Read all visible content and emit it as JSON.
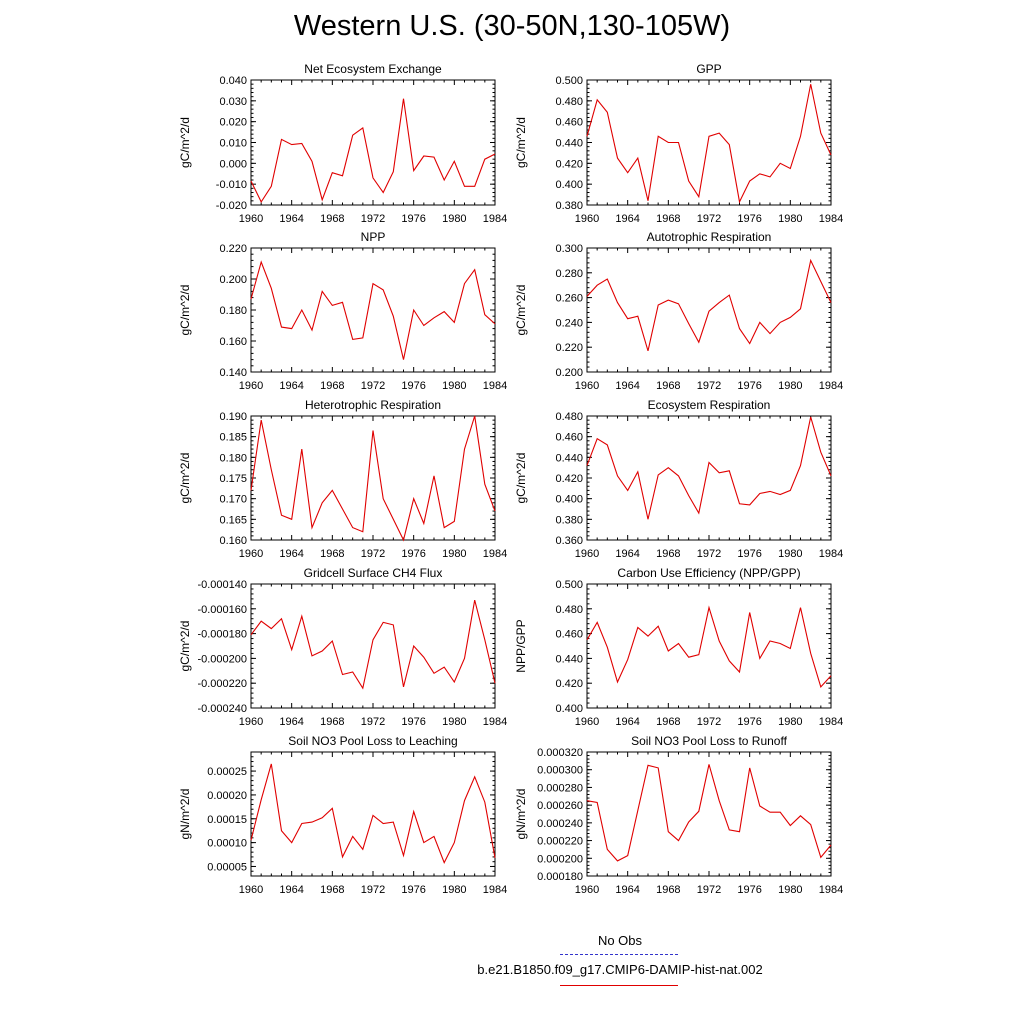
{
  "title": "Western U.S. (30-50N,130-105W)",
  "colors": {
    "model_line": "#e00000",
    "obs_line": "#3333cc",
    "axis": "#000000"
  },
  "legend": {
    "obs_label": "No Obs",
    "model_label": "b.e21.B1850.f09_g17.CMIP6-DAMIP-hist-nat.002"
  },
  "chart_data": [
    {
      "type": "line",
      "title": "Net Ecosystem Exchange",
      "ylabel": "gC/m^2/d",
      "xlim": [
        1960,
        1984
      ],
      "ylim": [
        -0.02,
        0.04
      ],
      "yticks": [
        "-0.020",
        "-0.010",
        "0.000",
        "0.010",
        "0.020",
        "0.030",
        "0.040"
      ],
      "xticks": [
        "1960",
        "1964",
        "1968",
        "1972",
        "1976",
        "1980",
        "1984"
      ],
      "x": [
        1960,
        1961,
        1962,
        1963,
        1964,
        1965,
        1966,
        1967,
        1968,
        1969,
        1970,
        1971,
        1972,
        1973,
        1974,
        1975,
        1976,
        1977,
        1978,
        1979,
        1980,
        1981,
        1982,
        1983,
        1984
      ],
      "series": [
        {
          "values": [
            -0.0085,
            -0.0185,
            -0.011,
            0.0115,
            0.009,
            0.0095,
            0.001,
            -0.0175,
            -0.0045,
            -0.006,
            0.0135,
            0.017,
            -0.007,
            -0.014,
            -0.004,
            0.031,
            -0.0035,
            0.0035,
            0.003,
            -0.008,
            0.001,
            -0.011,
            -0.011,
            0.002,
            0.0045
          ]
        }
      ]
    },
    {
      "type": "line",
      "title": "GPP",
      "ylabel": "gC/m^2/d",
      "xlim": [
        1960,
        1984
      ],
      "ylim": [
        0.38,
        0.5
      ],
      "yticks": [
        "0.380",
        "0.400",
        "0.420",
        "0.440",
        "0.460",
        "0.480",
        "0.500"
      ],
      "xticks": [
        "1960",
        "1964",
        "1968",
        "1972",
        "1976",
        "1980",
        "1984"
      ],
      "x": [
        1960,
        1961,
        1962,
        1963,
        1964,
        1965,
        1966,
        1967,
        1968,
        1969,
        1970,
        1971,
        1972,
        1973,
        1974,
        1975,
        1976,
        1977,
        1978,
        1979,
        1980,
        1981,
        1982,
        1983,
        1984
      ],
      "series": [
        {
          "values": [
            0.446,
            0.481,
            0.469,
            0.425,
            0.411,
            0.425,
            0.384,
            0.446,
            0.44,
            0.44,
            0.403,
            0.388,
            0.446,
            0.449,
            0.438,
            0.383,
            0.403,
            0.41,
            0.407,
            0.42,
            0.415,
            0.446,
            0.496,
            0.449,
            0.428
          ]
        }
      ]
    },
    {
      "type": "line",
      "title": "NPP",
      "ylabel": "gC/m^2/d",
      "xlim": [
        1960,
        1984
      ],
      "ylim": [
        0.14,
        0.22
      ],
      "yticks": [
        "0.140",
        "0.160",
        "0.180",
        "0.200",
        "0.220"
      ],
      "xticks": [
        "1960",
        "1964",
        "1968",
        "1972",
        "1976",
        "1980",
        "1984"
      ],
      "x": [
        1960,
        1961,
        1962,
        1963,
        1964,
        1965,
        1966,
        1967,
        1968,
        1969,
        1970,
        1971,
        1972,
        1973,
        1974,
        1975,
        1976,
        1977,
        1978,
        1979,
        1980,
        1981,
        1982,
        1983,
        1984
      ],
      "series": [
        {
          "values": [
            0.187,
            0.211,
            0.194,
            0.169,
            0.168,
            0.18,
            0.167,
            0.192,
            0.183,
            0.185,
            0.161,
            0.162,
            0.197,
            0.193,
            0.176,
            0.148,
            0.18,
            0.17,
            0.175,
            0.179,
            0.172,
            0.197,
            0.206,
            0.177,
            0.171
          ]
        }
      ]
    },
    {
      "type": "line",
      "title": "Autotrophic Respiration",
      "ylabel": "gC/m^2/d",
      "xlim": [
        1960,
        1984
      ],
      "ylim": [
        0.2,
        0.3
      ],
      "yticks": [
        "0.200",
        "0.220",
        "0.240",
        "0.260",
        "0.280",
        "0.300"
      ],
      "xticks": [
        "1960",
        "1964",
        "1968",
        "1972",
        "1976",
        "1980",
        "1984"
      ],
      "x": [
        1960,
        1961,
        1962,
        1963,
        1964,
        1965,
        1966,
        1967,
        1968,
        1969,
        1970,
        1971,
        1972,
        1973,
        1974,
        1975,
        1976,
        1977,
        1978,
        1979,
        1980,
        1981,
        1982,
        1983,
        1984
      ],
      "series": [
        {
          "values": [
            0.261,
            0.27,
            0.275,
            0.256,
            0.243,
            0.245,
            0.217,
            0.254,
            0.258,
            0.255,
            0.239,
            0.224,
            0.249,
            0.256,
            0.262,
            0.235,
            0.223,
            0.24,
            0.231,
            0.24,
            0.244,
            0.251,
            0.29,
            0.273,
            0.256
          ]
        }
      ]
    },
    {
      "type": "line",
      "title": "Heterotrophic Respiration",
      "ylabel": "gC/m^2/d",
      "xlim": [
        1960,
        1984
      ],
      "ylim": [
        0.16,
        0.19
      ],
      "yticks": [
        "0.160",
        "0.165",
        "0.170",
        "0.175",
        "0.180",
        "0.185",
        "0.190"
      ],
      "xticks": [
        "1960",
        "1964",
        "1968",
        "1972",
        "1976",
        "1980",
        "1984"
      ],
      "x": [
        1960,
        1961,
        1962,
        1963,
        1964,
        1965,
        1966,
        1967,
        1968,
        1969,
        1970,
        1971,
        1972,
        1973,
        1974,
        1975,
        1976,
        1977,
        1978,
        1979,
        1980,
        1981,
        1982,
        1983,
        1984
      ],
      "series": [
        {
          "values": [
            0.172,
            0.189,
            0.177,
            0.166,
            0.165,
            0.182,
            0.163,
            0.169,
            0.172,
            0.1675,
            0.163,
            0.162,
            0.1865,
            0.17,
            0.165,
            0.16,
            0.17,
            0.164,
            0.1755,
            0.163,
            0.1645,
            0.182,
            0.19,
            0.1735,
            0.167
          ]
        }
      ]
    },
    {
      "type": "line",
      "title": "Ecosystem Respiration",
      "ylabel": "gC/m^2/d",
      "xlim": [
        1960,
        1984
      ],
      "ylim": [
        0.36,
        0.48
      ],
      "yticks": [
        "0.360",
        "0.380",
        "0.400",
        "0.420",
        "0.440",
        "0.460",
        "0.480"
      ],
      "xticks": [
        "1960",
        "1964",
        "1968",
        "1972",
        "1976",
        "1980",
        "1984"
      ],
      "x": [
        1960,
        1961,
        1962,
        1963,
        1964,
        1965,
        1966,
        1967,
        1968,
        1969,
        1970,
        1971,
        1972,
        1973,
        1974,
        1975,
        1976,
        1977,
        1978,
        1979,
        1980,
        1981,
        1982,
        1983,
        1984
      ],
      "series": [
        {
          "values": [
            0.432,
            0.458,
            0.452,
            0.422,
            0.408,
            0.426,
            0.38,
            0.423,
            0.43,
            0.422,
            0.403,
            0.386,
            0.435,
            0.425,
            0.427,
            0.395,
            0.394,
            0.405,
            0.407,
            0.404,
            0.408,
            0.432,
            0.479,
            0.445,
            0.422
          ]
        }
      ]
    },
    {
      "type": "line",
      "title": "Gridcell Surface CH4 Flux",
      "ylabel": "gC/m^2/d",
      "xlim": [
        1960,
        1984
      ],
      "ylim": [
        -0.00024,
        -0.00014
      ],
      "yticks": [
        "-0.000240",
        "-0.000220",
        "-0.000200",
        "-0.000180",
        "-0.000160",
        "-0.000140"
      ],
      "xticks": [
        "1960",
        "1964",
        "1968",
        "1972",
        "1976",
        "1980",
        "1984"
      ],
      "x": [
        1960,
        1961,
        1962,
        1963,
        1964,
        1965,
        1966,
        1967,
        1968,
        1969,
        1970,
        1971,
        1972,
        1973,
        1974,
        1975,
        1976,
        1977,
        1978,
        1979,
        1980,
        1981,
        1982,
        1983,
        1984
      ],
      "series": [
        {
          "values": [
            -0.000181,
            -0.00017,
            -0.000176,
            -0.000168,
            -0.000193,
            -0.000166,
            -0.000198,
            -0.000194,
            -0.000186,
            -0.000213,
            -0.000211,
            -0.000224,
            -0.000185,
            -0.000171,
            -0.000173,
            -0.000223,
            -0.00019,
            -0.000199,
            -0.000212,
            -0.000207,
            -0.000219,
            -0.0002,
            -0.000153,
            -0.000185,
            -0.00022
          ]
        }
      ]
    },
    {
      "type": "line",
      "title": "Carbon Use Efficiency (NPP/GPP)",
      "ylabel": "NPP/GPP",
      "xlim": [
        1960,
        1984
      ],
      "ylim": [
        0.4,
        0.5
      ],
      "yticks": [
        "0.400",
        "0.420",
        "0.440",
        "0.460",
        "0.480",
        "0.500"
      ],
      "xticks": [
        "1960",
        "1964",
        "1968",
        "1972",
        "1976",
        "1980",
        "1984"
      ],
      "x": [
        1960,
        1961,
        1962,
        1963,
        1964,
        1965,
        1966,
        1967,
        1968,
        1969,
        1970,
        1971,
        1972,
        1973,
        1974,
        1975,
        1976,
        1977,
        1978,
        1979,
        1980,
        1981,
        1982,
        1983,
        1984
      ],
      "series": [
        {
          "values": [
            0.455,
            0.469,
            0.449,
            0.421,
            0.439,
            0.465,
            0.458,
            0.466,
            0.446,
            0.452,
            0.441,
            0.443,
            0.481,
            0.454,
            0.438,
            0.429,
            0.477,
            0.44,
            0.454,
            0.452,
            0.448,
            0.481,
            0.444,
            0.417,
            0.426
          ]
        }
      ]
    },
    {
      "type": "line",
      "title": "Soil NO3 Pool Loss to Leaching",
      "ylabel": "gN/m^2/d",
      "xlim": [
        1960,
        1984
      ],
      "ylim": [
        3e-05,
        0.00029
      ],
      "yticks": [
        "0.00005",
        "0.00010",
        "0.00015",
        "0.00020",
        "0.00025"
      ],
      "xticks": [
        "1960",
        "1964",
        "1968",
        "1972",
        "1976",
        "1980",
        "1984"
      ],
      "x": [
        1960,
        1961,
        1962,
        1963,
        1964,
        1965,
        1966,
        1967,
        1968,
        1969,
        1970,
        1971,
        1972,
        1973,
        1974,
        1975,
        1976,
        1977,
        1978,
        1979,
        1980,
        1981,
        1982,
        1983,
        1984
      ],
      "series": [
        {
          "values": [
            0.000105,
            0.00019,
            0.000265,
            0.000125,
            0.0001,
            0.00014,
            0.000143,
            0.000152,
            0.000172,
            7e-05,
            0.000113,
            8.6e-05,
            0.000157,
            0.00014,
            0.000143,
            7.3e-05,
            0.000165,
            0.0001,
            0.000113,
            5.8e-05,
            0.0001,
            0.000188,
            0.000238,
            0.000185,
            6.8e-05
          ]
        }
      ]
    },
    {
      "type": "line",
      "title": "Soil NO3 Pool Loss to Runoff",
      "ylabel": "gN/m^2/d",
      "xlim": [
        1960,
        1984
      ],
      "ylim": [
        0.00018,
        0.00032
      ],
      "yticks": [
        "0.000180",
        "0.000200",
        "0.000220",
        "0.000240",
        "0.000260",
        "0.000280",
        "0.000300",
        "0.000320"
      ],
      "xticks": [
        "1960",
        "1964",
        "1968",
        "1972",
        "1976",
        "1980",
        "1984"
      ],
      "x": [
        1960,
        1961,
        1962,
        1963,
        1964,
        1965,
        1966,
        1967,
        1968,
        1969,
        1970,
        1971,
        1972,
        1973,
        1974,
        1975,
        1976,
        1977,
        1978,
        1979,
        1980,
        1981,
        1982,
        1983,
        1984
      ],
      "series": [
        {
          "values": [
            0.000265,
            0.000263,
            0.00021,
            0.000197,
            0.000203,
            0.000254,
            0.000305,
            0.000302,
            0.00023,
            0.00022,
            0.000241,
            0.000253,
            0.000306,
            0.000265,
            0.000232,
            0.00023,
            0.000302,
            0.000259,
            0.000252,
            0.000252,
            0.000237,
            0.000248,
            0.000238,
            0.000201,
            0.000215
          ]
        }
      ]
    }
  ]
}
